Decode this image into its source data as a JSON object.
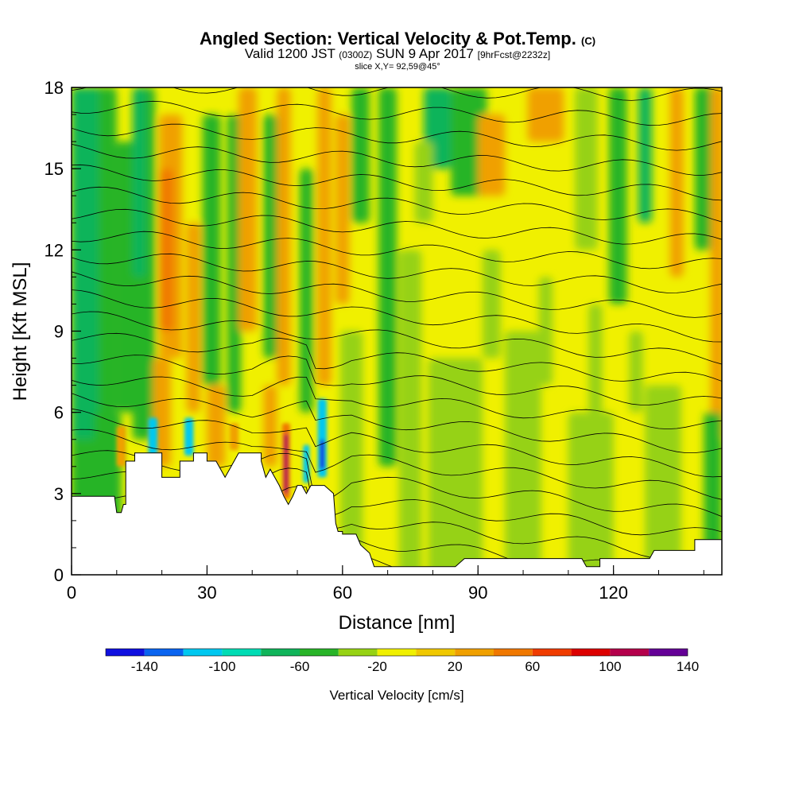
{
  "header": {
    "title_main": "Angled Section: Vertical Velocity & Pot.Temp.",
    "title_mark": "(C)",
    "valid_prefix": "Valid 1200 JST",
    "valid_utc": "(0300Z)",
    "valid_date": "SUN 9 Apr 2017",
    "forecast": "[9hrFcst@2232z]",
    "slice": "slice X,Y= 92,59@45°"
  },
  "colors": {
    "frame": "#000000",
    "terrain": "#ffffff",
    "contour": "#000000",
    "scale": [
      "#1010e0",
      "#0a64f0",
      "#00c8f0",
      "#00dcb4",
      "#10b45a",
      "#28b428",
      "#96d214",
      "#f0f000",
      "#f0c800",
      "#f0a000",
      "#f07800",
      "#f03c00",
      "#dc0000",
      "#b4004b",
      "#640096"
    ]
  },
  "chart_data": {
    "type": "heatmap",
    "xlabel": "Distance [nm]",
    "ylabel": "Height [Kft MSL]",
    "xlim": [
      0,
      144
    ],
    "ylim": [
      0,
      18
    ],
    "xticks": [
      0,
      30,
      60,
      90,
      120
    ],
    "yticks": [
      0,
      3,
      6,
      9,
      12,
      15,
      18
    ],
    "colorbar": {
      "title": "Vertical Velocity [cm/s]",
      "ticks": [
        -140,
        -100,
        -60,
        -20,
        20,
        60,
        100,
        140
      ],
      "bounds": [
        -160,
        -140,
        -120,
        -100,
        -80,
        -60,
        -40,
        -20,
        0,
        20,
        40,
        60,
        80,
        100,
        120,
        140
      ]
    },
    "terrain_kft": [
      [
        0,
        2.9
      ],
      [
        2.5,
        2.9
      ],
      [
        3,
        2.9
      ],
      [
        8,
        2.9
      ],
      [
        9.5,
        2.9
      ],
      [
        10,
        2.3
      ],
      [
        11,
        2.3
      ],
      [
        11.5,
        2.6
      ],
      [
        12,
        2.6
      ],
      [
        12,
        4.2
      ],
      [
        14,
        4.2
      ],
      [
        14,
        4.5
      ],
      [
        17,
        4.5
      ],
      [
        20,
        4.5
      ],
      [
        20,
        3.6
      ],
      [
        24,
        3.6
      ],
      [
        24,
        4.2
      ],
      [
        27,
        4.2
      ],
      [
        27,
        4.5
      ],
      [
        30,
        4.5
      ],
      [
        30,
        4.2
      ],
      [
        32,
        4.2
      ],
      [
        33,
        3.9
      ],
      [
        34,
        3.6
      ],
      [
        35,
        3.9
      ],
      [
        36,
        4.2
      ],
      [
        37,
        4.5
      ],
      [
        42,
        4.5
      ],
      [
        42,
        4.2
      ],
      [
        43,
        3.6
      ],
      [
        44,
        3.9
      ],
      [
        45,
        3.6
      ],
      [
        46,
        3.3
      ],
      [
        47,
        2.9
      ],
      [
        48,
        2.6
      ],
      [
        49,
        2.9
      ],
      [
        50,
        3.3
      ],
      [
        51,
        3.3
      ],
      [
        52,
        3.0
      ],
      [
        53,
        3.3
      ],
      [
        56,
        3.3
      ],
      [
        58,
        3.0
      ],
      [
        58.5,
        1.9
      ],
      [
        59,
        1.6
      ],
      [
        60,
        1.6
      ],
      [
        60,
        1.5
      ],
      [
        63,
        1.5
      ],
      [
        64,
        1.1
      ],
      [
        66,
        0.8
      ],
      [
        67,
        0.3
      ],
      [
        68,
        0.3
      ],
      [
        82,
        0.3
      ],
      [
        85,
        0.3
      ],
      [
        87,
        0.6
      ],
      [
        90,
        0.6
      ],
      [
        100,
        0.6
      ],
      [
        113,
        0.6
      ],
      [
        114,
        0.3
      ],
      [
        117,
        0.3
      ],
      [
        117,
        0.6
      ],
      [
        128,
        0.6
      ],
      [
        129,
        0.9
      ],
      [
        138,
        0.9
      ],
      [
        138,
        1.3
      ],
      [
        144,
        1.3
      ]
    ],
    "notable_features": [
      {
        "label": "updraft",
        "x_nm": 47.5,
        "z_kft": 4.0,
        "w_cms": 130
      },
      {
        "label": "downdraft",
        "x_nm": 55.5,
        "z_kft": 4.5,
        "w_cms": -140
      },
      {
        "label": "downdraft",
        "x_nm": 17,
        "z_kft": 5.0,
        "w_cms": -80
      },
      {
        "label": "downdraft",
        "x_nm": 26,
        "z_kft": 5.0,
        "w_cms": -80
      }
    ],
    "contour_field": "potential temperature (K)",
    "contour_count": 28
  }
}
